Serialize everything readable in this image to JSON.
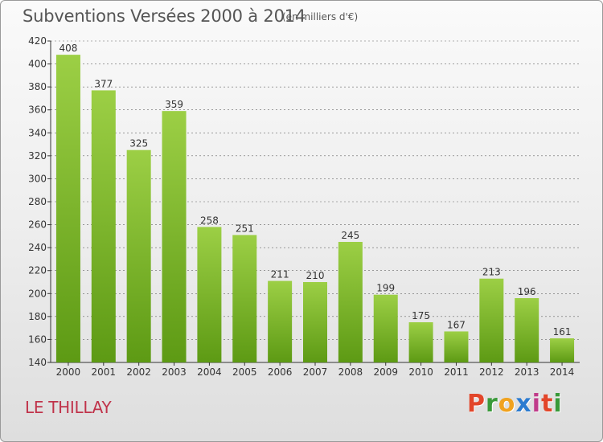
{
  "header": {
    "title": "Subventions Versées 2000 à 2014",
    "unit": "(en milliers d'€)"
  },
  "footer": {
    "place": "LE THILLAY",
    "logo": [
      "P",
      "r",
      "o",
      "x",
      "i",
      "t",
      "i"
    ],
    "logo_colors": [
      "#e2462a",
      "#3a9a3a",
      "#f0a21e",
      "#2b7bd0",
      "#c03c8a",
      "#e2462a",
      "#3a9a3a"
    ]
  },
  "colors": {
    "bar_light": "#9ccf45",
    "bar_dark": "#5d9a14",
    "axis": "#333333",
    "grid": "#666666"
  },
  "chart_data": {
    "type": "bar",
    "title": "Subventions Versées 2000 à 2014",
    "categories": [
      "2000",
      "2001",
      "2002",
      "2003",
      "2004",
      "2005",
      "2006",
      "2007",
      "2008",
      "2009",
      "2010",
      "2011",
      "2012",
      "2013",
      "2014"
    ],
    "values": [
      408,
      377,
      325,
      359,
      258,
      251,
      211,
      210,
      245,
      199,
      175,
      167,
      213,
      196,
      161
    ],
    "ylim": [
      140,
      420
    ],
    "yticks": [
      140,
      160,
      180,
      200,
      220,
      240,
      260,
      280,
      300,
      320,
      340,
      360,
      380,
      400,
      420
    ],
    "grid": "horizontal dashed",
    "xlabel": "",
    "ylabel": ""
  }
}
